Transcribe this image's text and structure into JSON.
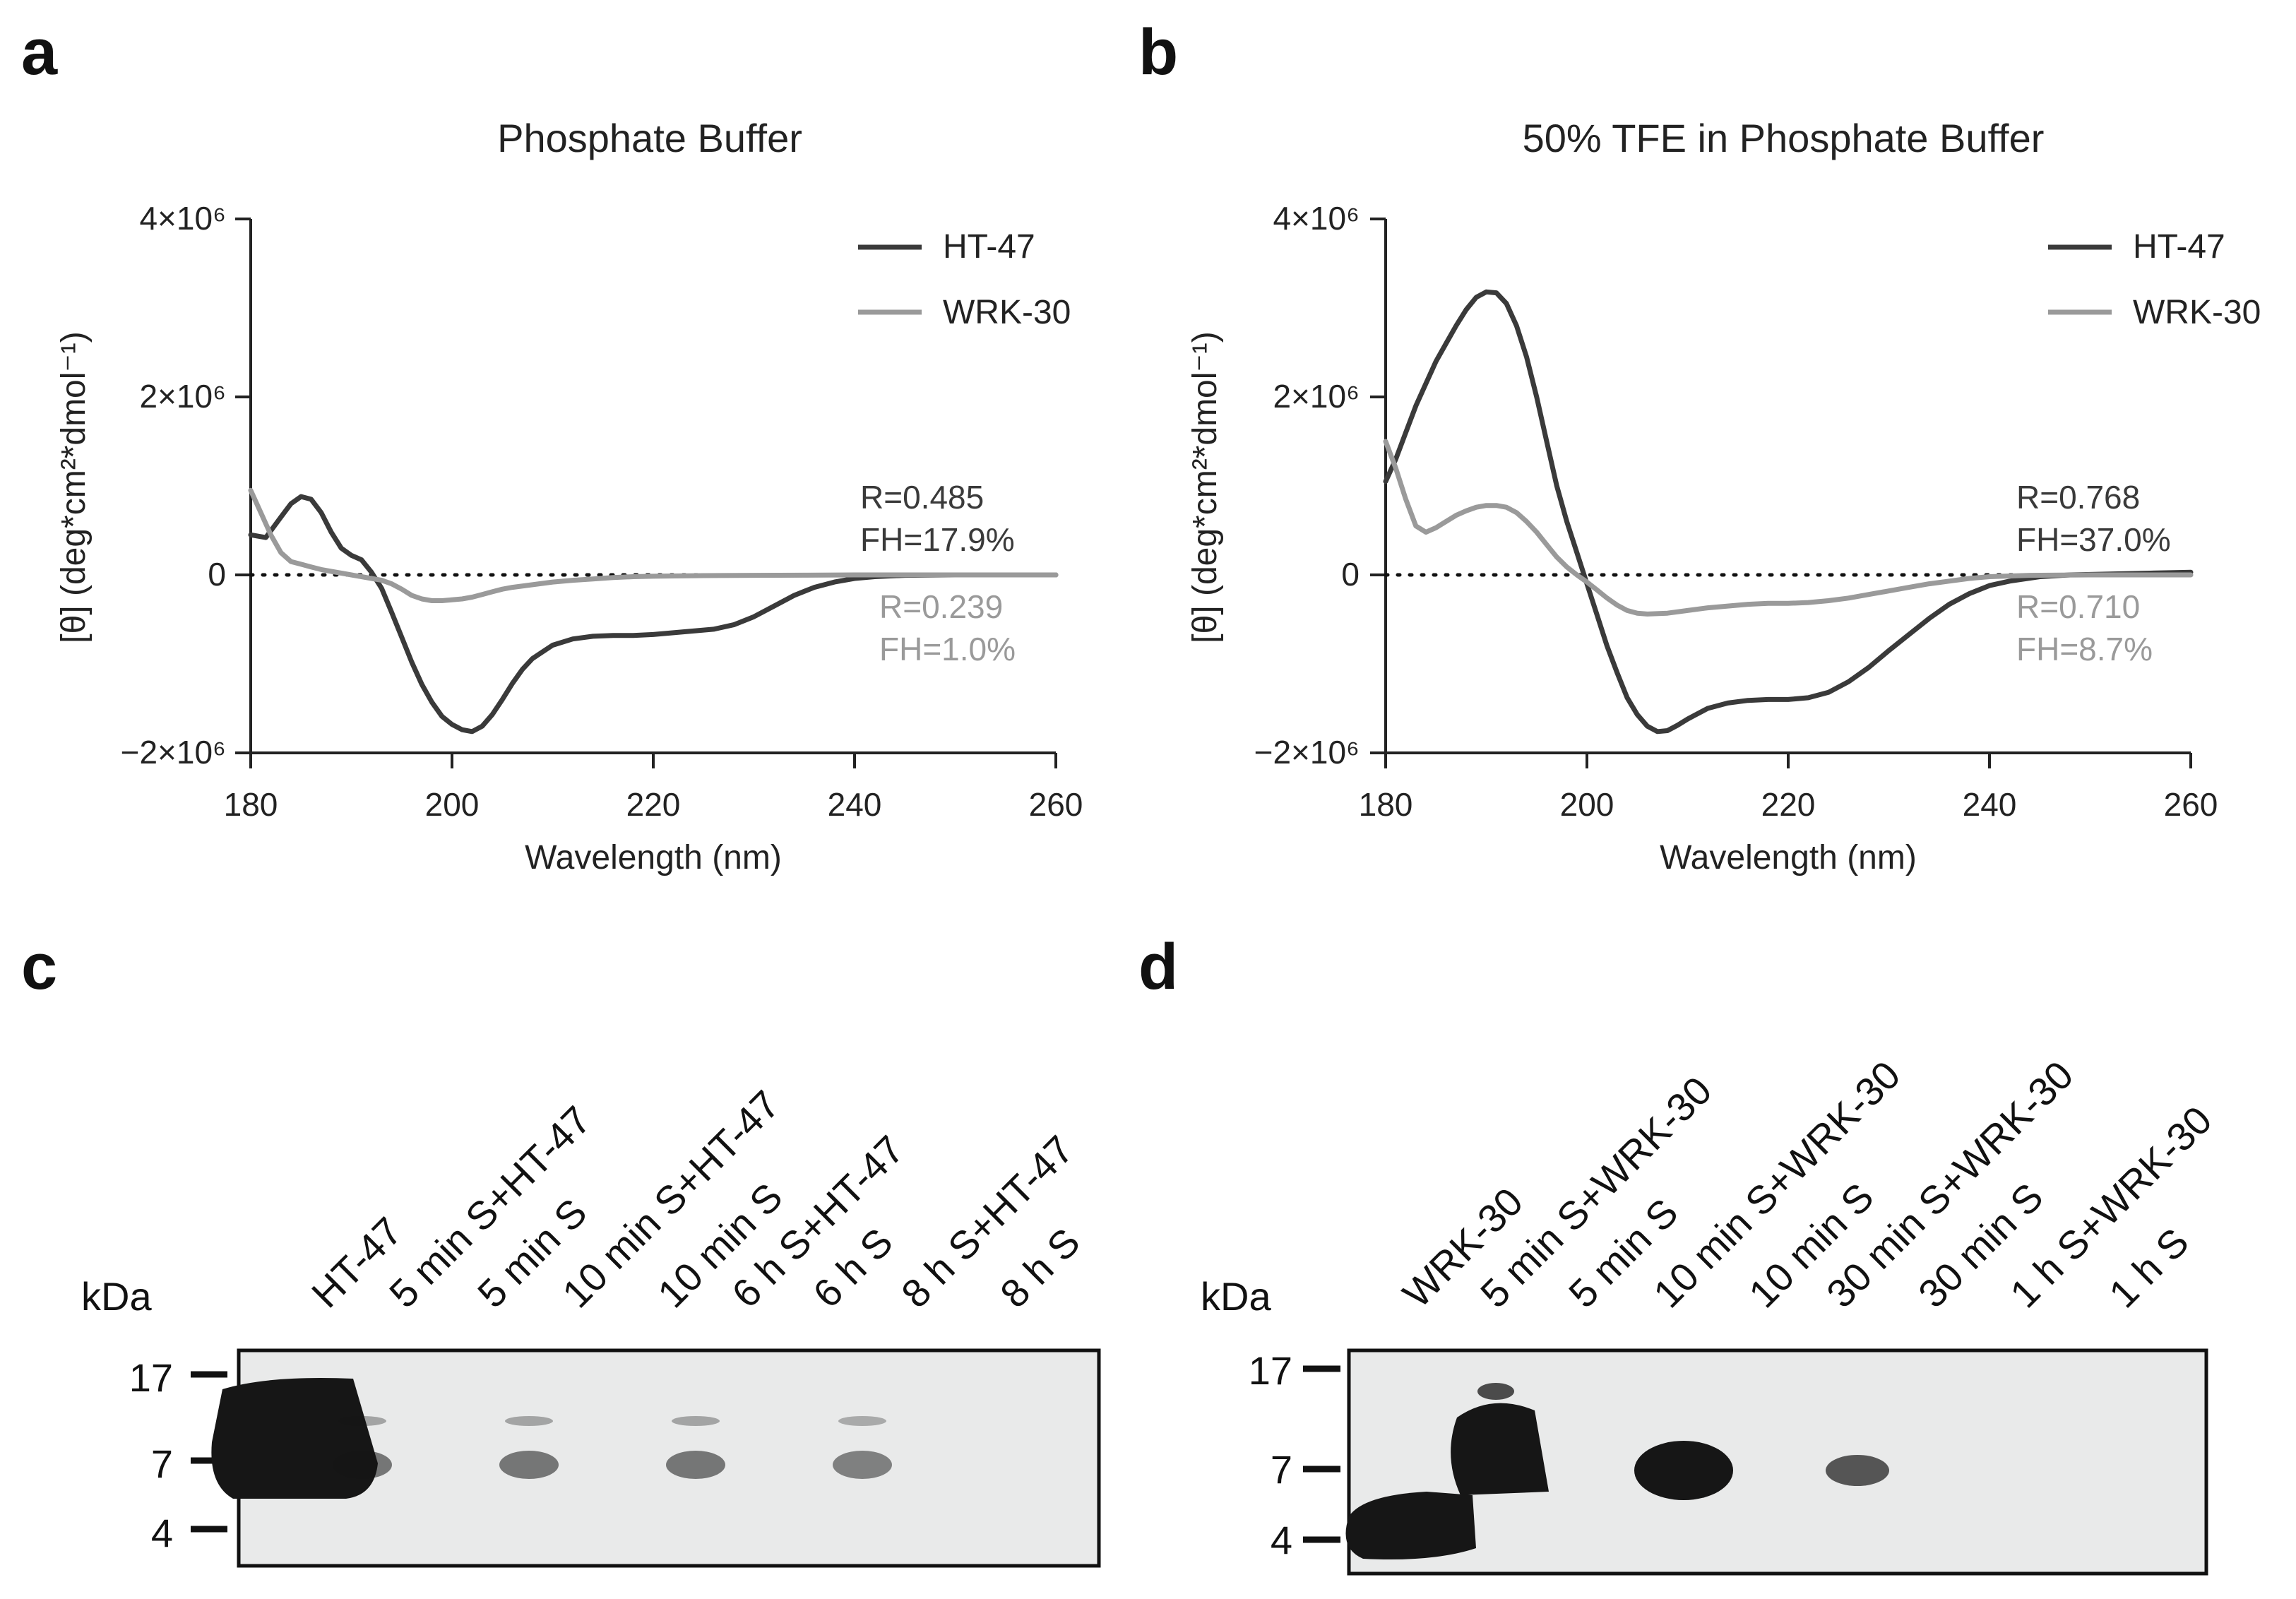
{
  "colors": {
    "background": "#ffffff",
    "ht47_series": "#3a3a3a",
    "wrk30_series": "#9a9a9a",
    "axis": "#222222",
    "blot_membrane": "#e9eaea",
    "band": "#161616"
  },
  "chart_data": [
    {
      "panel": "a",
      "type": "line",
      "title": "Phosphate Buffer",
      "xlabel": "Wavelength (nm)",
      "ylabel": "[θ] (deg*cm²*dmol⁻¹)",
      "xlim": [
        180,
        260
      ],
      "ylim": [
        -2000000,
        4000000
      ],
      "x_ticks": [
        "180",
        "200",
        "220",
        "240",
        "260"
      ],
      "y_ticks": [
        {
          "value": 4000000,
          "label": "4×10⁶"
        },
        {
          "value": 2000000,
          "label": "2×10⁶"
        },
        {
          "value": 0,
          "label": "0"
        },
        {
          "value": -2000000,
          "label": "−2×10⁶"
        }
      ],
      "zero_line": "dotted",
      "legend_position": "top-right",
      "series": [
        {
          "name": "HT-47",
          "color": "#3a3a3a",
          "annotation": [
            "R=0.485",
            "FH=17.9%"
          ],
          "points": [
            [
              180,
              450000
            ],
            [
              181.5,
              420000
            ],
            [
              183,
              650000
            ],
            [
              184,
              800000
            ],
            [
              185,
              880000
            ],
            [
              186,
              850000
            ],
            [
              187,
              700000
            ],
            [
              188,
              480000
            ],
            [
              189,
              300000
            ],
            [
              190,
              220000
            ],
            [
              191,
              170000
            ],
            [
              192,
              30000
            ],
            [
              193,
              -150000
            ],
            [
              194,
              -420000
            ],
            [
              195,
              -700000
            ],
            [
              196,
              -980000
            ],
            [
              197,
              -1230000
            ],
            [
              198,
              -1430000
            ],
            [
              199,
              -1590000
            ],
            [
              200,
              -1680000
            ],
            [
              201,
              -1740000
            ],
            [
              202,
              -1760000
            ],
            [
              203,
              -1700000
            ],
            [
              204,
              -1570000
            ],
            [
              205,
              -1400000
            ],
            [
              206,
              -1220000
            ],
            [
              207,
              -1060000
            ],
            [
              208,
              -940000
            ],
            [
              210,
              -790000
            ],
            [
              212,
              -720000
            ],
            [
              214,
              -690000
            ],
            [
              216,
              -680000
            ],
            [
              218,
              -680000
            ],
            [
              220,
              -670000
            ],
            [
              222,
              -650000
            ],
            [
              224,
              -630000
            ],
            [
              226,
              -610000
            ],
            [
              228,
              -560000
            ],
            [
              230,
              -470000
            ],
            [
              232,
              -350000
            ],
            [
              234,
              -230000
            ],
            [
              236,
              -140000
            ],
            [
              238,
              -80000
            ],
            [
              240,
              -40000
            ],
            [
              242,
              -20000
            ],
            [
              245,
              -5000
            ],
            [
              250,
              0
            ],
            [
              255,
              0
            ],
            [
              260,
              0
            ]
          ]
        },
        {
          "name": "WRK-30",
          "color": "#9a9a9a",
          "annotation": [
            "R=0.239",
            "FH=1.0%"
          ],
          "points": [
            [
              180,
              950000
            ],
            [
              181,
              700000
            ],
            [
              182,
              450000
            ],
            [
              183,
              250000
            ],
            [
              184,
              150000
            ],
            [
              185,
              120000
            ],
            [
              186,
              90000
            ],
            [
              187,
              60000
            ],
            [
              188,
              40000
            ],
            [
              189,
              20000
            ],
            [
              190,
              0
            ],
            [
              191,
              -20000
            ],
            [
              192,
              -40000
            ],
            [
              193,
              -60000
            ],
            [
              194,
              -100000
            ],
            [
              195,
              -160000
            ],
            [
              196,
              -230000
            ],
            [
              197,
              -270000
            ],
            [
              198,
              -290000
            ],
            [
              199,
              -290000
            ],
            [
              200,
              -280000
            ],
            [
              201,
              -270000
            ],
            [
              202,
              -250000
            ],
            [
              203,
              -220000
            ],
            [
              204,
              -190000
            ],
            [
              205,
              -160000
            ],
            [
              206,
              -140000
            ],
            [
              208,
              -110000
            ],
            [
              210,
              -80000
            ],
            [
              212,
              -60000
            ],
            [
              214,
              -45000
            ],
            [
              216,
              -30000
            ],
            [
              218,
              -20000
            ],
            [
              220,
              -15000
            ],
            [
              225,
              -8000
            ],
            [
              230,
              -5000
            ],
            [
              235,
              -3000
            ],
            [
              240,
              0
            ],
            [
              250,
              0
            ],
            [
              260,
              0
            ]
          ]
        }
      ]
    },
    {
      "panel": "b",
      "type": "line",
      "title": "50% TFE in Phosphate Buffer",
      "xlabel": "Wavelength (nm)",
      "ylabel": "[θ] (deg*cm²*dmol⁻¹)",
      "xlim": [
        180,
        260
      ],
      "ylim": [
        -2000000,
        4000000
      ],
      "x_ticks": [
        "180",
        "200",
        "220",
        "240",
        "260"
      ],
      "y_ticks": [
        {
          "value": 4000000,
          "label": "4×10⁶"
        },
        {
          "value": 2000000,
          "label": "2×10⁶"
        },
        {
          "value": 0,
          "label": "0"
        },
        {
          "value": -2000000,
          "label": "−2×10⁶"
        }
      ],
      "zero_line": "dotted",
      "legend_position": "top-right",
      "series": [
        {
          "name": "HT-47",
          "color": "#3a3a3a",
          "annotation": [
            "R=0.768",
            "FH=37.0%"
          ],
          "points": [
            [
              180,
              1050000
            ],
            [
              181,
              1300000
            ],
            [
              182,
              1600000
            ],
            [
              183,
              1900000
            ],
            [
              184,
              2150000
            ],
            [
              185,
              2400000
            ],
            [
              186,
              2600000
            ],
            [
              187,
              2800000
            ],
            [
              188,
              2980000
            ],
            [
              189,
              3120000
            ],
            [
              190,
              3180000
            ],
            [
              191,
              3170000
            ],
            [
              192,
              3050000
            ],
            [
              193,
              2800000
            ],
            [
              194,
              2450000
            ],
            [
              195,
              2000000
            ],
            [
              196,
              1500000
            ],
            [
              197,
              1000000
            ],
            [
              198,
              600000
            ],
            [
              199,
              250000
            ],
            [
              200,
              -100000
            ],
            [
              201,
              -450000
            ],
            [
              202,
              -800000
            ],
            [
              203,
              -1100000
            ],
            [
              204,
              -1380000
            ],
            [
              205,
              -1570000
            ],
            [
              206,
              -1700000
            ],
            [
              207,
              -1760000
            ],
            [
              208,
              -1750000
            ],
            [
              209,
              -1690000
            ],
            [
              210,
              -1620000
            ],
            [
              212,
              -1500000
            ],
            [
              214,
              -1440000
            ],
            [
              216,
              -1410000
            ],
            [
              218,
              -1400000
            ],
            [
              220,
              -1400000
            ],
            [
              222,
              -1380000
            ],
            [
              224,
              -1320000
            ],
            [
              226,
              -1200000
            ],
            [
              228,
              -1040000
            ],
            [
              230,
              -850000
            ],
            [
              232,
              -670000
            ],
            [
              234,
              -490000
            ],
            [
              236,
              -330000
            ],
            [
              238,
              -210000
            ],
            [
              240,
              -120000
            ],
            [
              242,
              -70000
            ],
            [
              245,
              -20000
            ],
            [
              248,
              0
            ],
            [
              252,
              10000
            ],
            [
              256,
              20000
            ],
            [
              260,
              30000
            ]
          ]
        },
        {
          "name": "WRK-30",
          "color": "#9a9a9a",
          "annotation": [
            "R=0.710",
            "FH=8.7%"
          ],
          "points": [
            [
              180,
              1500000
            ],
            [
              181,
              1200000
            ],
            [
              182,
              850000
            ],
            [
              183,
              550000
            ],
            [
              184,
              480000
            ],
            [
              185,
              530000
            ],
            [
              186,
              600000
            ],
            [
              187,
              670000
            ],
            [
              188,
              720000
            ],
            [
              189,
              760000
            ],
            [
              190,
              780000
            ],
            [
              191,
              780000
            ],
            [
              192,
              760000
            ],
            [
              193,
              700000
            ],
            [
              194,
              600000
            ],
            [
              195,
              480000
            ],
            [
              196,
              340000
            ],
            [
              197,
              200000
            ],
            [
              198,
              90000
            ],
            [
              199,
              0
            ],
            [
              200,
              -80000
            ],
            [
              201,
              -170000
            ],
            [
              202,
              -260000
            ],
            [
              203,
              -340000
            ],
            [
              204,
              -400000
            ],
            [
              205,
              -430000
            ],
            [
              206,
              -440000
            ],
            [
              208,
              -430000
            ],
            [
              210,
              -400000
            ],
            [
              212,
              -370000
            ],
            [
              214,
              -350000
            ],
            [
              216,
              -330000
            ],
            [
              218,
              -320000
            ],
            [
              220,
              -320000
            ],
            [
              222,
              -310000
            ],
            [
              224,
              -290000
            ],
            [
              226,
              -260000
            ],
            [
              228,
              -220000
            ],
            [
              230,
              -180000
            ],
            [
              232,
              -140000
            ],
            [
              234,
              -100000
            ],
            [
              236,
              -70000
            ],
            [
              238,
              -40000
            ],
            [
              240,
              -20000
            ],
            [
              244,
              -5000
            ],
            [
              250,
              0
            ],
            [
              255,
              0
            ],
            [
              260,
              0
            ]
          ]
        }
      ]
    },
    {
      "panel": "c",
      "type": "blot",
      "unit_label": "kDa",
      "markers": [
        "17",
        "7",
        "4"
      ],
      "lanes": [
        "HT-47",
        "5 min S+HT-47",
        "5 min S",
        "10 min S+HT-47",
        "10 min S",
        "6 h S+HT-47",
        "6 h S",
        "8 h S+HT-47",
        "8 h S"
      ],
      "band_intensity": [
        1.0,
        0.55,
        0.0,
        0.55,
        0.0,
        0.55,
        0.0,
        0.5,
        0.0
      ]
    },
    {
      "panel": "d",
      "type": "blot",
      "unit_label": "kDa",
      "markers": [
        "17",
        "7",
        "4"
      ],
      "lanes": [
        "WRK-30",
        "5 min S+WRK-30",
        "5 min S",
        "10 min S+WRK-30",
        "10 min S",
        "30 min S+WRK-30",
        "30 min S",
        "1 h S+WRK-30",
        "1 h S"
      ],
      "band_intensity": [
        1.0,
        1.0,
        0.0,
        1.0,
        0.0,
        0.7,
        0.0,
        0.0,
        0.0
      ]
    }
  ]
}
